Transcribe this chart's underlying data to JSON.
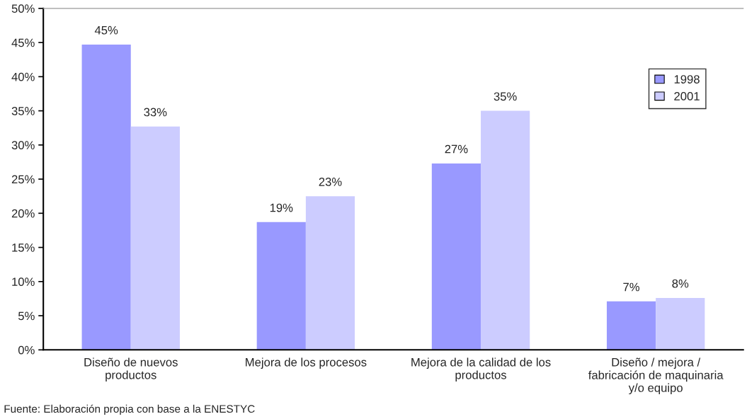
{
  "chart_data": {
    "type": "bar",
    "categories": [
      "Diseño de nuevos\nproductos",
      "Mejora de los procesos",
      "Mejora de la calidad de los\nproductos",
      "Diseño / mejora /\nfabricación de maquinaria\ny/o equipo"
    ],
    "series": [
      {
        "name": "1998",
        "color": "#9999ff",
        "values": [
          44.7,
          18.7,
          27.3,
          7.1
        ],
        "value_labels": [
          "45%",
          "19%",
          "27%",
          "7%"
        ]
      },
      {
        "name": "2001",
        "color": "#ccccff",
        "values": [
          32.7,
          22.5,
          35.0,
          7.6
        ],
        "value_labels": [
          "33%",
          "23%",
          "35%",
          "8%"
        ]
      }
    ],
    "ylim": [
      0,
      50
    ],
    "yticks": [
      {
        "value": 0,
        "label": "0%"
      },
      {
        "value": 5,
        "label": "5%"
      },
      {
        "value": 10,
        "label": "10%"
      },
      {
        "value": 15,
        "label": "15%"
      },
      {
        "value": 20,
        "label": "20%"
      },
      {
        "value": 25,
        "label": "25%"
      },
      {
        "value": 30,
        "label": "30%"
      },
      {
        "value": 35,
        "label": "35%"
      },
      {
        "value": 40,
        "label": "40%"
      },
      {
        "value": 45,
        "label": "45%"
      },
      {
        "value": 50,
        "label": "50%"
      }
    ],
    "legend": "right",
    "grid": false,
    "annotations": [
      "Fuente: Elaboración propia con base a la ENESTYC"
    ]
  }
}
